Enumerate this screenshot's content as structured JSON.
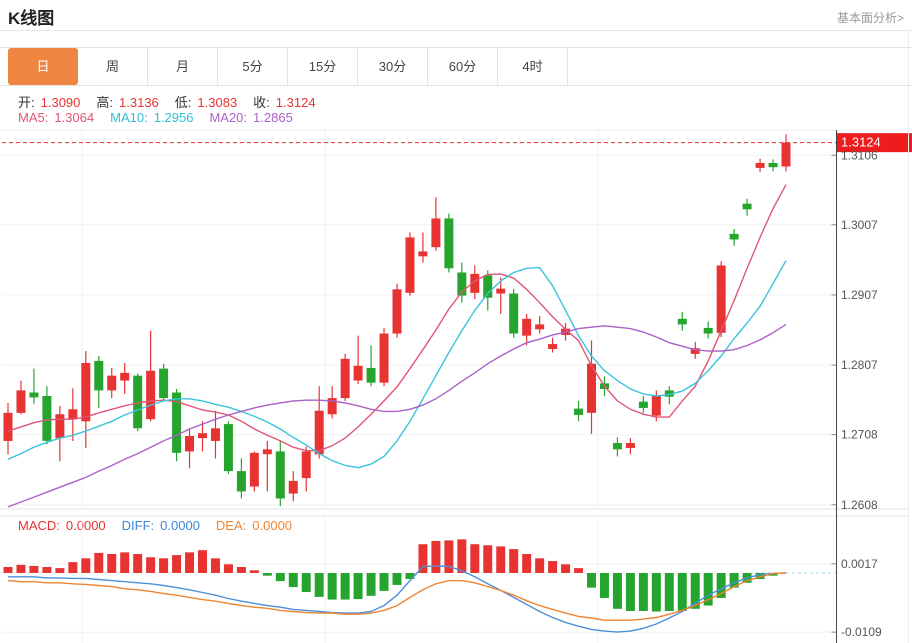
{
  "header": {
    "title": "K线图",
    "link": "基本面分析>"
  },
  "tabs": {
    "items": [
      "日",
      "周",
      "月",
      "5分",
      "15分",
      "30分",
      "60分",
      "4时"
    ],
    "selected": 0
  },
  "info": {
    "ohlc": [
      {
        "label": "开:",
        "value": "1.3090"
      },
      {
        "label": "高:",
        "value": "1.3136"
      },
      {
        "label": "低:",
        "value": "1.3083"
      },
      {
        "label": "收:",
        "value": "1.3124"
      }
    ],
    "ohlc_label_color": "#333333",
    "ohlc_value_color": "#e83333",
    "ma": [
      {
        "label": "MA5:",
        "value": "1.3064",
        "color": "#e05577"
      },
      {
        "label": "MA10:",
        "value": "1.2956",
        "color": "#2fc0d2"
      },
      {
        "label": "MA20:",
        "value": "1.2865",
        "color": "#a863c8"
      }
    ]
  },
  "macd_info": [
    {
      "label": "MACD:",
      "value": "0.0000",
      "color": "#e83333"
    },
    {
      "label": "DIFF:",
      "value": "0.0000",
      "color": "#3d87d9"
    },
    {
      "label": "DEA:",
      "value": "0.0000",
      "color": "#ef8432"
    }
  ],
  "chart_data": {
    "type": "candlestick+macd",
    "title": "K线图 (daily K-line with MA5/MA10/MA20 and MACD)",
    "colors": {
      "up": "#e83333",
      "down": "#26a52e",
      "ma5": "#e05577",
      "ma10": "#3bc4dc",
      "ma20": "#aa62c9",
      "diff": "#4e8fd9",
      "dea": "#ef8432",
      "grid": "#f0f0f0",
      "axis": "#444444",
      "tick_text": "#555555",
      "price_tag_bg": "#ee1c1c",
      "price_tag_text": "#ffffff",
      "zero_dash": "#a8d8ea",
      "border": "#e5e5e5"
    },
    "main": {
      "ylim": [
        1.2602,
        1.3142
      ],
      "yticks": [
        {
          "price": 1.3106,
          "label": "1.3106"
        },
        {
          "price": 1.3007,
          "label": "1.3007"
        },
        {
          "price": 1.2907,
          "label": "1.2907"
        },
        {
          "price": 1.2807,
          "label": "1.2807"
        },
        {
          "price": 1.2708,
          "label": "1.2708"
        },
        {
          "price": 1.2608,
          "label": "1.2608"
        }
      ],
      "current_price": {
        "label": "1.3124",
        "price": 1.3124
      },
      "candles": [
        [
          1.2699,
          1.2753,
          1.268,
          1.2739
        ],
        [
          1.2739,
          1.2785,
          1.2737,
          1.2771
        ],
        [
          1.2768,
          1.2802,
          1.2752,
          1.2761
        ],
        [
          1.2763,
          1.2777,
          1.2694,
          1.2699
        ],
        [
          1.2703,
          1.2749,
          1.267,
          1.2737
        ],
        [
          1.273,
          1.2774,
          1.2699,
          1.2744
        ],
        [
          1.2727,
          1.2827,
          1.2689,
          1.281
        ],
        [
          1.2813,
          1.282,
          1.2746,
          1.2771
        ],
        [
          1.2771,
          1.2803,
          1.276,
          1.2792
        ],
        [
          1.2785,
          1.281,
          1.2766,
          1.2796
        ],
        [
          1.2792,
          1.2795,
          1.2713,
          1.2717
        ],
        [
          1.273,
          1.2856,
          1.2727,
          1.2799
        ],
        [
          1.2802,
          1.2809,
          1.2756,
          1.276
        ],
        [
          1.2768,
          1.2773,
          1.267,
          1.2682
        ],
        [
          1.2684,
          1.2717,
          1.266,
          1.2706
        ],
        [
          1.2703,
          1.2727,
          1.2684,
          1.271
        ],
        [
          1.2699,
          1.2742,
          1.2674,
          1.2717
        ],
        [
          1.2723,
          1.2727,
          1.2652,
          1.2656
        ],
        [
          1.2656,
          1.2674,
          1.2617,
          1.2627
        ],
        [
          1.2634,
          1.2684,
          1.2627,
          1.2682
        ],
        [
          1.268,
          1.2699,
          1.2627,
          1.2687
        ],
        [
          1.2684,
          1.2699,
          1.2606,
          1.2617
        ],
        [
          1.2624,
          1.2656,
          1.2613,
          1.2642
        ],
        [
          1.2646,
          1.2691,
          1.2627,
          1.2684
        ],
        [
          1.268,
          1.2777,
          1.2674,
          1.2742
        ],
        [
          1.2737,
          1.2777,
          1.2731,
          1.276
        ],
        [
          1.276,
          1.2823,
          1.2756,
          1.2816
        ],
        [
          1.2785,
          1.2849,
          1.278,
          1.2806
        ],
        [
          1.2803,
          1.2835,
          1.2777,
          1.2782
        ],
        [
          1.2782,
          1.286,
          1.2777,
          1.2852
        ],
        [
          1.2852,
          1.2923,
          1.2846,
          1.2915
        ],
        [
          1.291,
          1.2996,
          1.2906,
          1.2989
        ],
        [
          1.2962,
          1.2996,
          1.2953,
          1.2969
        ],
        [
          1.2975,
          1.3046,
          1.297,
          1.3016
        ],
        [
          1.3016,
          1.3023,
          1.2939,
          1.2945
        ],
        [
          1.2939,
          1.2953,
          1.2896,
          1.2906
        ],
        [
          1.291,
          1.2949,
          1.2901,
          1.2937
        ],
        [
          1.2935,
          1.2942,
          1.2885,
          1.2903
        ],
        [
          1.2909,
          1.2932,
          1.288,
          1.2916
        ],
        [
          1.2909,
          1.2916,
          1.2846,
          1.2852
        ],
        [
          1.2849,
          1.288,
          1.2835,
          1.2873
        ],
        [
          1.2858,
          1.2877,
          1.2852,
          1.2865
        ],
        [
          1.283,
          1.2846,
          1.2825,
          1.2837
        ],
        [
          1.285,
          1.2867,
          1.2842,
          1.2859
        ],
        [
          1.2745,
          1.2756,
          1.2727,
          1.2736
        ],
        [
          1.2739,
          1.2842,
          1.2709,
          1.2809
        ],
        [
          1.2781,
          1.2791,
          1.2763,
          1.2773
        ],
        [
          1.2696,
          1.2704,
          1.2677,
          1.2687
        ],
        [
          1.2689,
          1.2703,
          1.268,
          1.2696
        ],
        [
          1.2755,
          1.2763,
          1.2739,
          1.2746
        ],
        [
          1.2735,
          1.2771,
          1.2727,
          1.2763
        ],
        [
          1.2771,
          1.2777,
          1.2751,
          1.2762
        ],
        [
          1.2873,
          1.2883,
          1.2856,
          1.2865
        ],
        [
          1.2823,
          1.284,
          1.2816,
          1.2831
        ],
        [
          1.286,
          1.2869,
          1.2845,
          1.2852
        ],
        [
          1.2853,
          1.2955,
          1.2847,
          1.2949
        ],
        [
          1.2994,
          1.3001,
          1.2977,
          1.2986
        ],
        [
          1.3037,
          1.3044,
          1.302,
          1.3029
        ],
        [
          1.3088,
          1.3101,
          1.3082,
          1.3095
        ],
        [
          1.3095,
          1.31,
          1.3083,
          1.3089
        ],
        [
          1.309,
          1.3136,
          1.3083,
          1.3124
        ]
      ],
      "ma5": [
        1.2713,
        1.2719,
        1.2725,
        1.2729,
        1.273,
        1.273,
        1.2733,
        1.2739,
        1.2744,
        1.2749,
        1.2753,
        1.2756,
        1.2757,
        1.2755,
        1.2749,
        1.2743,
        1.274,
        1.2736,
        1.2727,
        1.2716,
        1.2707,
        1.2699,
        1.269,
        1.2685,
        1.2685,
        1.2692,
        1.2703,
        1.2719,
        1.2737,
        1.2756,
        1.2776,
        1.2802,
        1.2829,
        1.2857,
        1.2887,
        1.2911,
        1.2927,
        1.2936,
        1.2937,
        1.2931,
        1.2915,
        1.2896,
        1.2876,
        1.2858,
        1.2842,
        1.2806,
        1.2777,
        1.2756,
        1.2744,
        1.2737,
        1.2733,
        1.2733,
        1.2756,
        1.2777,
        1.2813,
        1.2856,
        1.2899,
        1.2945,
        1.2989,
        1.303,
        1.3064
      ],
      "ma10": [
        1.2673,
        1.2681,
        1.269,
        1.2697,
        1.2703,
        1.2707,
        1.2713,
        1.272,
        1.2727,
        1.2736,
        1.2743,
        1.275,
        1.2756,
        1.2759,
        1.2759,
        1.2756,
        1.2751,
        1.2747,
        1.2741,
        1.2734,
        1.2726,
        1.2716,
        1.2704,
        1.2693,
        1.2681,
        1.2671,
        1.2664,
        1.2661,
        1.2666,
        1.2677,
        1.2699,
        1.2727,
        1.2759,
        1.2792,
        1.2825,
        1.2856,
        1.2885,
        1.2909,
        1.2927,
        1.2939,
        1.2945,
        1.2946,
        1.292,
        1.2885,
        1.2849,
        1.282,
        1.2799,
        1.2785,
        1.2773,
        1.2766,
        1.2763,
        1.2765,
        1.277,
        1.2781,
        1.2799,
        1.282,
        1.2845,
        1.2867,
        1.2891,
        1.2923,
        1.2956
      ],
      "ma20": [
        1.2605,
        1.2612,
        1.2619,
        1.2626,
        1.2633,
        1.264,
        1.2647,
        1.2656,
        1.2664,
        1.2673,
        1.2681,
        1.269,
        1.2699,
        1.2707,
        1.2716,
        1.2723,
        1.273,
        1.2736,
        1.2741,
        1.2746,
        1.275,
        1.2753,
        1.2756,
        1.2757,
        1.2757,
        1.2756,
        1.2753,
        1.2749,
        1.2744,
        1.2741,
        1.2741,
        1.2744,
        1.275,
        1.2759,
        1.2771,
        1.2784,
        1.2796,
        1.2809,
        1.282,
        1.283,
        1.2839,
        1.2844,
        1.285,
        1.2854,
        1.2859,
        1.2861,
        1.2863,
        1.2861,
        1.2859,
        1.2854,
        1.2847,
        1.2839,
        1.2834,
        1.2829,
        1.2827,
        1.2827,
        1.2829,
        1.2835,
        1.2843,
        1.2853,
        1.2865
      ]
    },
    "macd": {
      "ylim": [
        -0.0129,
        0.0105
      ],
      "yticks": [
        {
          "value": 0.0017,
          "label": "0.0017"
        },
        {
          "value": -0.0109,
          "label": "-0.0109"
        }
      ],
      "bars": [
        0.0011,
        0.0015,
        0.0013,
        0.0011,
        0.0009,
        0.002,
        0.0027,
        0.0037,
        0.0035,
        0.0038,
        0.0035,
        0.0029,
        0.0027,
        0.0033,
        0.0038,
        0.0042,
        0.0027,
        0.0016,
        0.0011,
        0.0005,
        -0.0005,
        -0.0015,
        -0.0026,
        -0.0035,
        -0.0044,
        -0.0049,
        -0.0049,
        -0.0048,
        -0.0042,
        -0.0033,
        -0.0022,
        -0.0011,
        0.0053,
        0.0059,
        0.006,
        0.0062,
        0.0053,
        0.0051,
        0.0049,
        0.0044,
        0.0035,
        0.0027,
        0.0022,
        0.0016,
        0.0009,
        -0.0027,
        -0.0046,
        -0.0066,
        -0.007,
        -0.007,
        -0.0071,
        -0.007,
        -0.007,
        -0.0066,
        -0.006,
        -0.0046,
        -0.0027,
        -0.0018,
        -0.0011,
        -0.0005,
        0.0
      ],
      "diff": [
        -0.0007,
        -0.0007,
        -0.0007,
        -0.0009,
        -0.0009,
        -0.001,
        -0.001,
        -0.0012,
        -0.0014,
        -0.0016,
        -0.0018,
        -0.002,
        -0.0023,
        -0.0027,
        -0.0031,
        -0.0036,
        -0.0041,
        -0.0047,
        -0.0052,
        -0.0056,
        -0.006,
        -0.0063,
        -0.0067,
        -0.0069,
        -0.0071,
        -0.0073,
        -0.0074,
        -0.0074,
        -0.0071,
        -0.006,
        -0.0041,
        -0.0014,
        0.0012,
        0.0013,
        0.0012,
        0.0004,
        -0.0007,
        -0.002,
        -0.0032,
        -0.0045,
        -0.0058,
        -0.0071,
        -0.0082,
        -0.0091,
        -0.0098,
        -0.0104,
        -0.0107,
        -0.0109,
        -0.0107,
        -0.0102,
        -0.0094,
        -0.0083,
        -0.0071,
        -0.0056,
        -0.0041,
        -0.0029,
        -0.0018,
        -0.0009,
        -0.0003,
        -0.0001,
        0.0
      ],
      "dea": [
        -0.0014,
        -0.0016,
        -0.0016,
        -0.0018,
        -0.0018,
        -0.002,
        -0.0021,
        -0.0023,
        -0.0025,
        -0.0029,
        -0.0031,
        -0.0034,
        -0.0038,
        -0.0041,
        -0.0045,
        -0.0049,
        -0.0052,
        -0.0056,
        -0.006,
        -0.0063,
        -0.0065,
        -0.0069,
        -0.0071,
        -0.0073,
        -0.0074,
        -0.0074,
        -0.0076,
        -0.0076,
        -0.0074,
        -0.0069,
        -0.006,
        -0.0045,
        -0.0031,
        -0.002,
        -0.0014,
        -0.0014,
        -0.0018,
        -0.0025,
        -0.0032,
        -0.0041,
        -0.0051,
        -0.006,
        -0.0067,
        -0.0074,
        -0.008,
        -0.0083,
        -0.0087,
        -0.0087,
        -0.0087,
        -0.0085,
        -0.0082,
        -0.0076,
        -0.0069,
        -0.006,
        -0.0049,
        -0.0038,
        -0.0025,
        -0.0014,
        -0.0007,
        -0.0001,
        0.0
      ]
    },
    "layout_hints": {
      "grid": "on",
      "legend": "inline-top-left",
      "x_axis_labels": "none"
    }
  }
}
